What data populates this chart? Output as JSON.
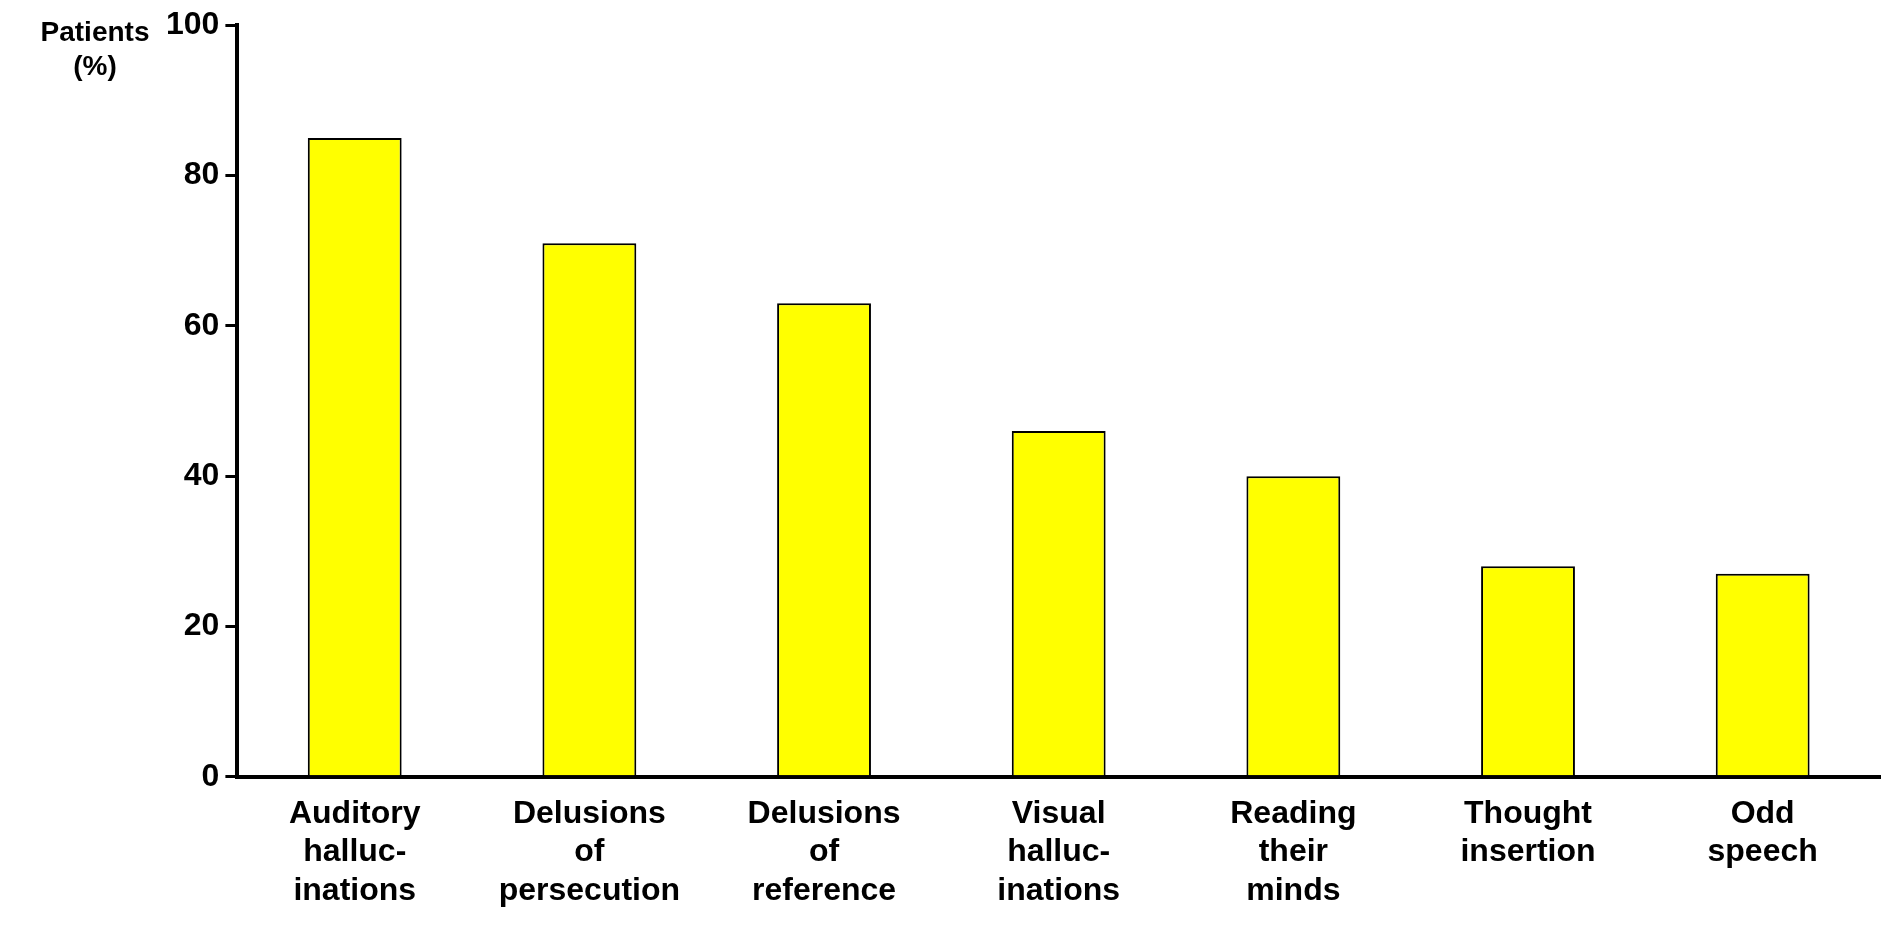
{
  "chart_data": {
    "type": "bar",
    "ylabel": "Patients\n(%)",
    "categories": [
      "Auditory\nhalluc-\ninations",
      "Delusions\nof\npersecution",
      "Delusions\nof\nreference",
      "Visual\nhalluc-\ninations",
      "Reading\ntheir\nminds",
      "Thought\ninsertion",
      "Odd\nspeech"
    ],
    "values": [
      85,
      71,
      63,
      46,
      40,
      28,
      27
    ],
    "color": "#ffff00",
    "ylim": [
      0,
      100
    ],
    "yticks": [
      0,
      20,
      40,
      60,
      80,
      100
    ],
    "grid": false,
    "legend": false
  }
}
